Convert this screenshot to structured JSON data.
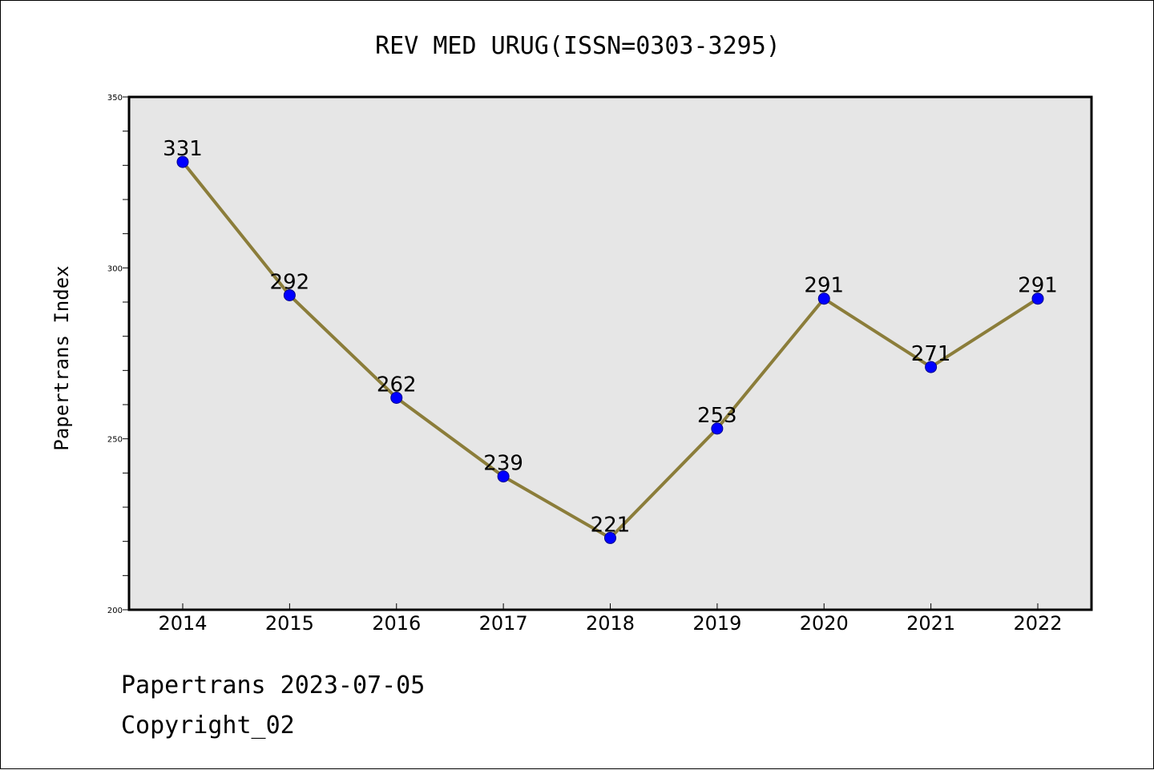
{
  "chart_data": {
    "type": "line",
    "title": "REV MED URUG(ISSN=0303-3295)",
    "ylabel": "Papertrans Index",
    "xlabel": "",
    "categories": [
      "2014",
      "2015",
      "2016",
      "2017",
      "2018",
      "2019",
      "2020",
      "2021",
      "2022"
    ],
    "series": [
      {
        "values": [
          331,
          292,
          262,
          239,
          221,
          253,
          291,
          271,
          291
        ]
      }
    ],
    "ylim": [
      200,
      350
    ],
    "yticks": [
      "200",
      "250",
      "300",
      "350"
    ],
    "grid": false,
    "plot_background": "#e6e6e6",
    "line_color": "#8b7d3a",
    "marker_color": "#0000ff"
  },
  "footer": {
    "line1": "Papertrans 2023-07-05",
    "line2": "Copyright_02"
  }
}
